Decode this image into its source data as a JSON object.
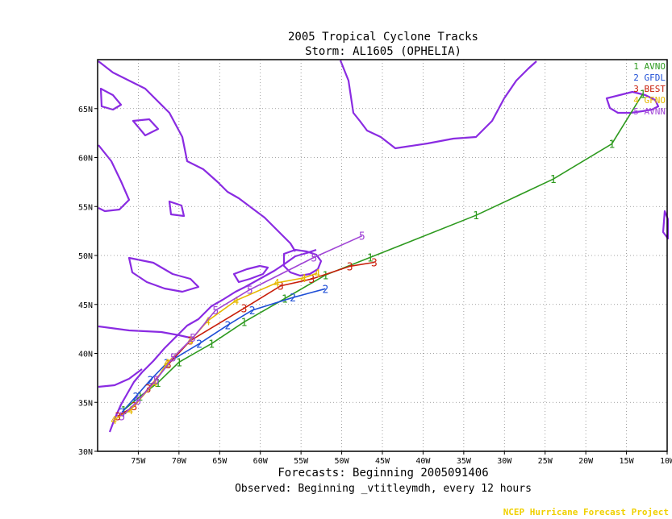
{
  "header": {
    "title_line1": "2005 Tropical Cyclone Tracks",
    "title_line2": "Storm: AL1605 (OPHELIA)"
  },
  "footer": {
    "line1": "Forecasts: Beginning 2005091406",
    "line2": "Observed: Beginning _vtitleymdh, every 12 hours",
    "credit": "NCEP Hurricane Forecast Project"
  },
  "colors": {
    "land": "#8a2be2",
    "grid": "#888888",
    "credit": "#f0d000"
  },
  "chart_data": {
    "type": "line",
    "xlim": [
      -80,
      -10
    ],
    "ylim": [
      30,
      70
    ],
    "x_ticks": [
      -75,
      -70,
      -65,
      -60,
      -55,
      -50,
      -45,
      -40,
      -35,
      -30,
      -25,
      -20,
      -15,
      -10
    ],
    "x_tick_labels": [
      "75W",
      "70W",
      "65W",
      "60W",
      "55W",
      "50W",
      "45W",
      "40W",
      "35W",
      "30W",
      "25W",
      "20W",
      "15W",
      "10W"
    ],
    "y_ticks": [
      30,
      35,
      40,
      45,
      50,
      55,
      60,
      65
    ],
    "y_tick_labels": [
      "30N",
      "35N",
      "40N",
      "45N",
      "50N",
      "55N",
      "60N",
      "65N"
    ],
    "grid": true,
    "legend_position": "top-right",
    "series": [
      {
        "marker": "1",
        "name": "AVNO",
        "color": "#2e9a1f",
        "points": [
          [
            -76.8,
            34.2
          ],
          [
            -74.8,
            35.6
          ],
          [
            -72.6,
            37.0
          ],
          [
            -70.0,
            39.1
          ],
          [
            -66.0,
            41.0
          ],
          [
            -62.0,
            43.2
          ],
          [
            -57.0,
            45.6
          ],
          [
            -52.0,
            48.0
          ],
          [
            -46.5,
            49.8
          ],
          [
            -33.5,
            54.1
          ],
          [
            -24.0,
            57.8
          ],
          [
            -16.8,
            61.4
          ],
          [
            -13.0,
            66.5
          ]
        ]
      },
      {
        "marker": "2",
        "name": "GFDL",
        "color": "#1f4fd6",
        "points": [
          [
            -77.0,
            34.0
          ],
          [
            -75.3,
            35.6
          ],
          [
            -73.5,
            37.3
          ],
          [
            -71.5,
            39.0
          ],
          [
            -67.5,
            41.0
          ],
          [
            -64.0,
            42.9
          ],
          [
            -61.0,
            44.4
          ],
          [
            -56.0,
            45.7
          ],
          [
            -52.0,
            46.6
          ]
        ]
      },
      {
        "marker": "3",
        "name": "BEST",
        "color": "#c81e0a",
        "points": [
          [
            -77.5,
            33.6
          ],
          [
            -75.5,
            34.6
          ],
          [
            -73.8,
            36.4
          ],
          [
            -71.3,
            38.9
          ],
          [
            -68.6,
            41.3
          ],
          [
            -62.0,
            44.6
          ],
          [
            -57.5,
            46.9
          ],
          [
            -53.7,
            47.6
          ],
          [
            -49.0,
            48.9
          ],
          [
            -46.0,
            49.3
          ]
        ]
      },
      {
        "marker": "4",
        "name": "GFNO",
        "color": "#e6b800",
        "points": [
          [
            -78.0,
            33.2
          ],
          [
            -76.0,
            34.2
          ],
          [
            -73.0,
            37.0
          ],
          [
            -71.5,
            39.0
          ],
          [
            -68.6,
            41.3
          ],
          [
            -66.5,
            43.3
          ],
          [
            -63.0,
            45.4
          ],
          [
            -58.0,
            47.2
          ],
          [
            -54.7,
            47.7
          ],
          [
            -53.0,
            48.2
          ]
        ]
      },
      {
        "marker": "5",
        "name": "AVNN",
        "color": "#a044d6",
        "points": [
          [
            -77.0,
            33.6
          ],
          [
            -75.0,
            35.2
          ],
          [
            -72.8,
            37.3
          ],
          [
            -70.7,
            39.6
          ],
          [
            -68.3,
            41.6
          ],
          [
            -65.5,
            44.4
          ],
          [
            -61.3,
            46.5
          ],
          [
            -53.4,
            49.8
          ],
          [
            -47.5,
            52.0
          ]
        ]
      }
    ]
  }
}
